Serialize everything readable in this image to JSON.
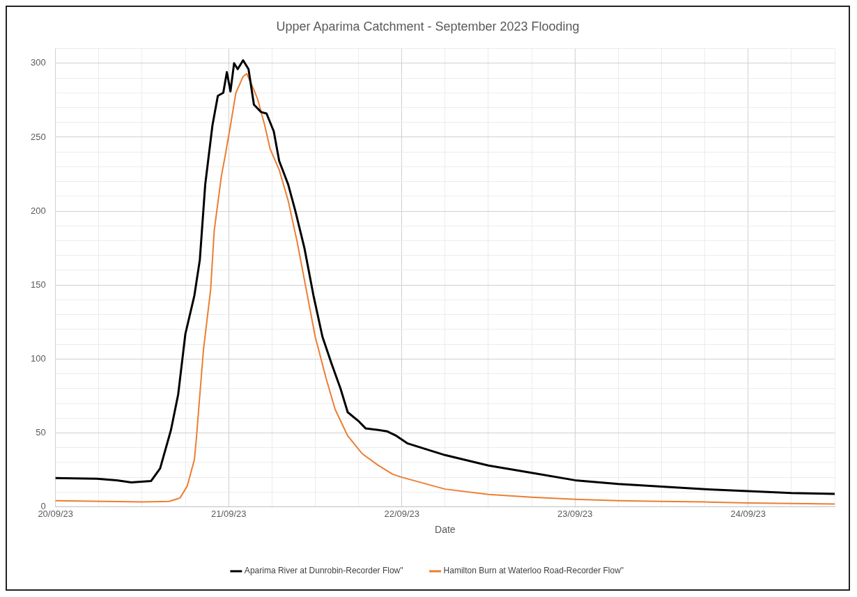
{
  "chart_data": {
    "type": "line",
    "title": "Upper Aparima Catchment - September 2023 Flooding",
    "xlabel": "Date",
    "legend": "bottom",
    "grid": true,
    "marker": "none",
    "line_style": "solid",
    "xlim": [
      "2023-09-20T00:00",
      "2023-09-24T12:00"
    ],
    "xticks": [
      {
        "value": "2023-09-20T00:00",
        "label": "20/09/23"
      },
      {
        "value": "2023-09-20T06:00",
        "label": null
      },
      {
        "value": "2023-09-20T12:00",
        "label": null
      },
      {
        "value": "2023-09-20T18:00",
        "label": null
      },
      {
        "value": "2023-09-21T00:00",
        "label": "21/09/23"
      },
      {
        "value": "2023-09-21T06:00",
        "label": null
      },
      {
        "value": "2023-09-21T12:00",
        "label": null
      },
      {
        "value": "2023-09-21T18:00",
        "label": null
      },
      {
        "value": "2023-09-22T00:00",
        "label": "22/09/23"
      },
      {
        "value": "2023-09-22T06:00",
        "label": null
      },
      {
        "value": "2023-09-22T12:00",
        "label": null
      },
      {
        "value": "2023-09-22T18:00",
        "label": null
      },
      {
        "value": "2023-09-23T00:00",
        "label": "23/09/23"
      },
      {
        "value": "2023-09-23T06:00",
        "label": null
      },
      {
        "value": "2023-09-23T12:00",
        "label": null
      },
      {
        "value": "2023-09-23T18:00",
        "label": null
      },
      {
        "value": "2023-09-24T00:00",
        "label": "24/09/23"
      },
      {
        "value": "2023-09-24T06:00",
        "label": null
      },
      {
        "value": "2023-09-24T12:00",
        "label": null
      }
    ],
    "ylim": [
      0,
      310
    ],
    "yticks": [
      0,
      {
        "value": 10,
        "label": null
      },
      {
        "value": 20,
        "label": null
      },
      {
        "value": 30,
        "label": null
      },
      {
        "value": 40,
        "label": null
      },
      50,
      {
        "value": 60,
        "label": null
      },
      {
        "value": 70,
        "label": null
      },
      {
        "value": 80,
        "label": null
      },
      {
        "value": 90,
        "label": null
      },
      100,
      {
        "value": 110,
        "label": null
      },
      {
        "value": 120,
        "label": null
      },
      {
        "value": 130,
        "label": null
      },
      {
        "value": 140,
        "label": null
      },
      150,
      {
        "value": 160,
        "label": null
      },
      {
        "value": 170,
        "label": null
      },
      {
        "value": 180,
        "label": null
      },
      {
        "value": 190,
        "label": null
      },
      200,
      {
        "value": 210,
        "label": null
      },
      {
        "value": 220,
        "label": null
      },
      {
        "value": 230,
        "label": null
      },
      {
        "value": 240,
        "label": null
      },
      250,
      {
        "value": 260,
        "label": null
      },
      {
        "value": 270,
        "label": null
      },
      {
        "value": 280,
        "label": null
      },
      {
        "value": 290,
        "label": null
      },
      300,
      {
        "value": 310,
        "label": null
      }
    ],
    "series": [
      {
        "name": "Aparima River at Dunrobin-Recorder Flow\"",
        "color": "#000000",
        "x": [
          "2023-09-20T00:00",
          "2023-09-20T05:45",
          "2023-09-20T08:30",
          "2023-09-20T10:30",
          "2023-09-20T13:15",
          "2023-09-20T14:30",
          "2023-09-20T16:00",
          "2023-09-20T17:00",
          "2023-09-20T18:00",
          "2023-09-20T19:15",
          "2023-09-20T20:00",
          "2023-09-20T20:45",
          "2023-09-20T21:45",
          "2023-09-20T22:30",
          "2023-09-20T23:15",
          "2023-09-20T23:45",
          "2023-09-21T00:15",
          "2023-09-21T00:45",
          "2023-09-21T01:15",
          "2023-09-21T02:00",
          "2023-09-21T02:45",
          "2023-09-21T03:30",
          "2023-09-21T04:30",
          "2023-09-21T05:15",
          "2023-09-21T06:15",
          "2023-09-21T07:00",
          "2023-09-21T08:15",
          "2023-09-21T09:15",
          "2023-09-21T10:30",
          "2023-09-21T11:45",
          "2023-09-21T13:00",
          "2023-09-21T14:15",
          "2023-09-21T15:30",
          "2023-09-21T16:30",
          "2023-09-21T18:00",
          "2023-09-21T19:00",
          "2023-09-21T20:45",
          "2023-09-21T22:00",
          "2023-09-21T23:15",
          "2023-09-22T00:45",
          "2023-09-22T06:00",
          "2023-09-22T12:00",
          "2023-09-22T18:00",
          "2023-09-23T00:00",
          "2023-09-23T06:00",
          "2023-09-23T12:00",
          "2023-09-23T18:00",
          "2023-09-24T00:00",
          "2023-09-24T06:00",
          "2023-09-24T12:00"
        ],
        "values": [
          19.5,
          19,
          18,
          16.5,
          17.5,
          26,
          52,
          76,
          117,
          143,
          167,
          218,
          258,
          278,
          280,
          294,
          281,
          300,
          296,
          302,
          296,
          272,
          267,
          266,
          254,
          234,
          218,
          200,
          175,
          143,
          115,
          97,
          80,
          64,
          58,
          53,
          52,
          51,
          48,
          43,
          35,
          28,
          23,
          18,
          15.5,
          13.7,
          11.9,
          10.7,
          9.3,
          8.8
        ]
      },
      {
        "name": "Hamilton Burn at Waterloo Road-Recorder Flow\"",
        "color": "#ed7d31",
        "x": [
          "2023-09-20T00:00",
          "2023-09-20T12:00",
          "2023-09-20T15:45",
          "2023-09-20T17:15",
          "2023-09-20T18:15",
          "2023-09-20T19:15",
          "2023-09-20T19:30",
          "2023-09-20T20:30",
          "2023-09-20T21:30",
          "2023-09-20T22:00",
          "2023-09-20T23:00",
          "2023-09-20T23:30",
          "2023-09-21T00:15",
          "2023-09-21T01:00",
          "2023-09-21T02:00",
          "2023-09-21T02:30",
          "2023-09-21T03:30",
          "2023-09-21T04:00",
          "2023-09-21T05:00",
          "2023-09-21T05:45",
          "2023-09-21T07:00",
          "2023-09-21T08:15",
          "2023-09-21T09:30",
          "2023-09-21T10:45",
          "2023-09-21T12:00",
          "2023-09-21T13:30",
          "2023-09-21T14:45",
          "2023-09-21T16:30",
          "2023-09-21T18:30",
          "2023-09-21T20:45",
          "2023-09-21T22:45",
          "2023-09-22T00:00",
          "2023-09-22T06:00",
          "2023-09-22T12:00",
          "2023-09-22T18:00",
          "2023-09-23T00:00",
          "2023-09-23T06:00",
          "2023-09-23T12:00",
          "2023-09-23T18:00",
          "2023-09-24T00:00",
          "2023-09-24T12:00"
        ],
        "values": [
          4.2,
          3.3,
          3.7,
          6,
          14,
          32,
          45,
          106,
          147,
          187,
          224,
          237,
          258,
          280,
          291,
          293,
          282,
          276,
          258,
          242,
          228,
          207,
          179,
          147,
          115,
          87,
          66,
          48,
          36,
          28,
          22,
          20,
          12,
          8.4,
          6.5,
          5.1,
          4.2,
          3.7,
          3.3,
          2.6,
          1.9
        ]
      }
    ]
  }
}
